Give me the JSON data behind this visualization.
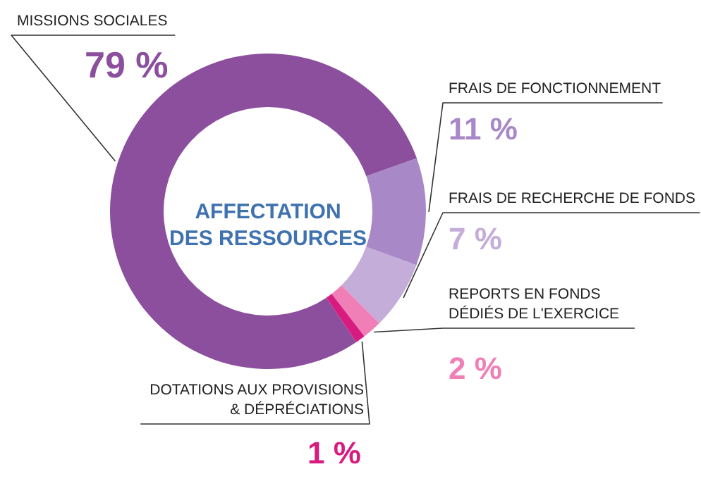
{
  "chart_data": {
    "type": "donut",
    "title": "AFFECTATION DES RESSOURCES",
    "categories": [
      "MISSIONS SOCIALES",
      "FRAIS DE FONCTIONNEMENT",
      "FRAIS DE RECHERCHE DE FONDS",
      "REPORTS EN FONDS DÉDIÉS DE L'EXERCICE",
      "DOTATIONS AUX PROVISIONS & DÉPRÉCIATIONS"
    ],
    "values": [
      79,
      11,
      7,
      2,
      1
    ],
    "colors": [
      "#8b4f9e",
      "#a888c6",
      "#c4add9",
      "#f07fb8",
      "#d81b7f"
    ],
    "value_labels": [
      "79 %",
      "11 %",
      "7 %",
      "2 %",
      "1 %"
    ]
  }
}
